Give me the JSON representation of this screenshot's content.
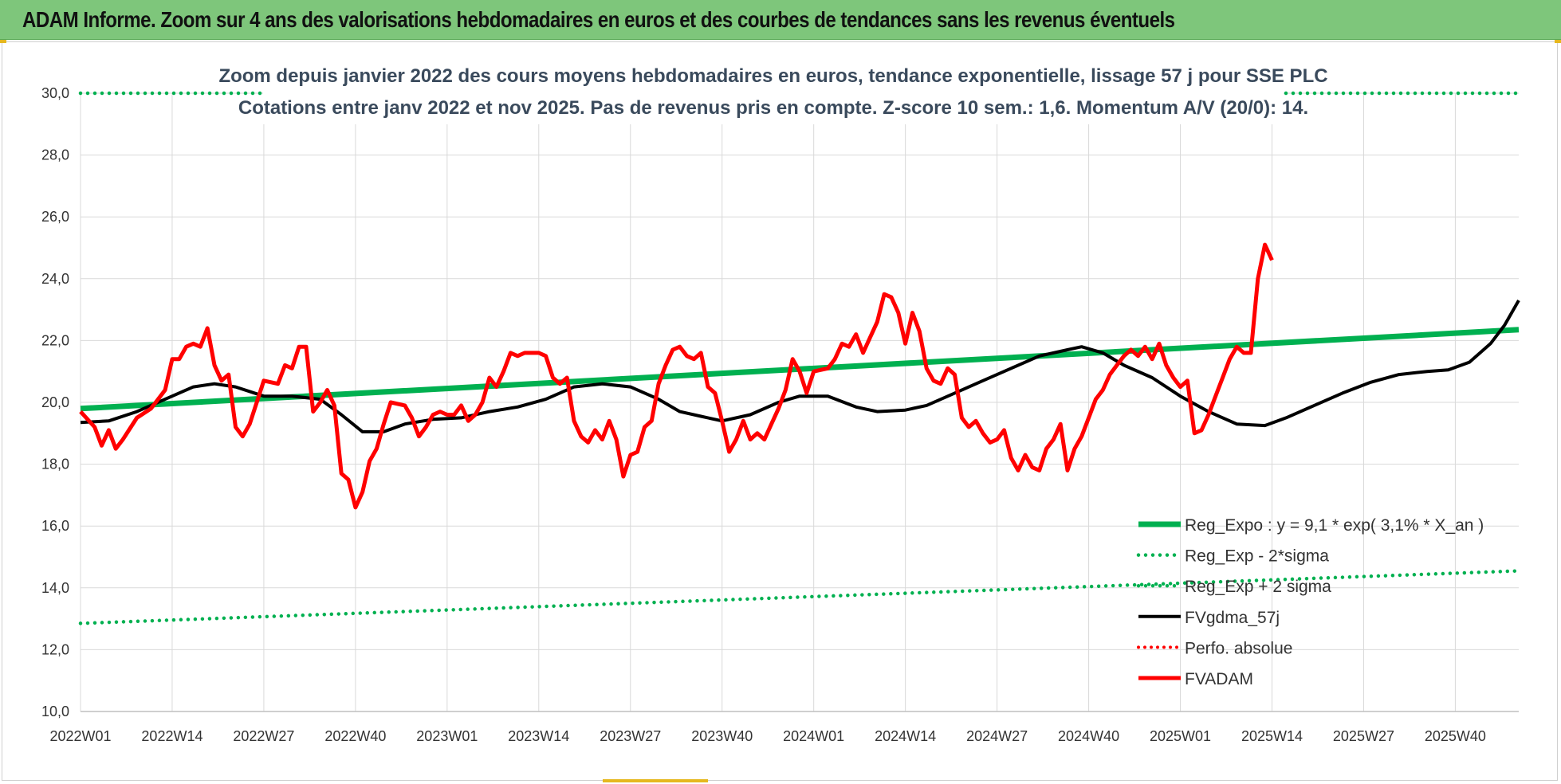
{
  "header": {
    "title": "ADAM Informe. Zoom sur 4 ans des valorisations hebdomadaires en euros et des courbes de tendances sans les revenus éventuels"
  },
  "colors": {
    "green": "#00b050",
    "black": "#000000",
    "red": "#ff0000",
    "grid": "#d9d9d9",
    "title_bg": "#7ec67b"
  },
  "chart_data": {
    "type": "line",
    "title": "Zoom depuis janvier 2022 des cours moyens hebdomadaires en euros, tendance exponentielle, lissage 57 j pour SSE PLC",
    "subtitle": "Cotations entre janv 2022 et nov 2025. Pas de revenus pris en compte. Z-score 10 sem.: 1,6. Momentum A/V (20/0): 14.",
    "xlabel": "",
    "ylabel": "",
    "ylim": [
      10,
      30
    ],
    "y_ticks": [
      "10,0",
      "12,0",
      "14,0",
      "16,0",
      "18,0",
      "20,0",
      "22,0",
      "24,0",
      "26,0",
      "28,0",
      "30,0"
    ],
    "x_tick_labels": [
      "2022W01",
      "2022W14",
      "2022W27",
      "2022W40",
      "2023W01",
      "2023W14",
      "2023W27",
      "2023W40",
      "2024W01",
      "2024W14",
      "2024W27",
      "2024W40",
      "2025W01",
      "2025W14",
      "2025W27",
      "2025W40"
    ],
    "x_tick_weeks": [
      0,
      13,
      26,
      39,
      52,
      65,
      78,
      91,
      104,
      117,
      130,
      143,
      156,
      169,
      182,
      195
    ],
    "n_weeks": 205,
    "legend": [
      "Reg_Expo : y = 9,1 * exp( 3,1% *  X_an )",
      "Reg_Exp - 2*sigma",
      "Reg_Exp + 2 sigma",
      "FVgdma_57j",
      "Perfo. absolue",
      "FVADAM"
    ],
    "series": [
      {
        "name": "Reg_Expo",
        "style": "solid-thick",
        "points": [
          [
            0,
            19.8
          ],
          [
            204,
            22.35
          ]
        ]
      },
      {
        "name": "Reg_Exp - 2*sigma",
        "style": "dotted",
        "points": [
          [
            0,
            12.85
          ],
          [
            204,
            14.55
          ]
        ]
      },
      {
        "name": "Reg_Exp + 2 sigma",
        "style": "dotted",
        "points": [
          [
            0,
            30.0
          ],
          [
            204,
            30.0
          ]
        ]
      },
      {
        "name": "FVgdma_57j",
        "style": "solid",
        "points": [
          [
            0,
            19.35
          ],
          [
            4,
            19.4
          ],
          [
            8,
            19.7
          ],
          [
            12,
            20.1
          ],
          [
            16,
            20.5
          ],
          [
            19,
            20.6
          ],
          [
            22,
            20.5
          ],
          [
            26,
            20.2
          ],
          [
            30,
            20.2
          ],
          [
            34,
            20.1
          ],
          [
            37,
            19.6
          ],
          [
            40,
            19.05
          ],
          [
            43,
            19.05
          ],
          [
            46,
            19.3
          ],
          [
            50,
            19.45
          ],
          [
            54,
            19.5
          ],
          [
            58,
            19.7
          ],
          [
            62,
            19.85
          ],
          [
            66,
            20.1
          ],
          [
            70,
            20.5
          ],
          [
            74,
            20.6
          ],
          [
            78,
            20.5
          ],
          [
            82,
            20.1
          ],
          [
            85,
            19.7
          ],
          [
            88,
            19.55
          ],
          [
            91,
            19.4
          ],
          [
            95,
            19.6
          ],
          [
            99,
            20.0
          ],
          [
            102,
            20.2
          ],
          [
            106,
            20.2
          ],
          [
            110,
            19.85
          ],
          [
            113,
            19.7
          ],
          [
            117,
            19.75
          ],
          [
            120,
            19.9
          ],
          [
            124,
            20.3
          ],
          [
            128,
            20.7
          ],
          [
            132,
            21.1
          ],
          [
            136,
            21.5
          ],
          [
            140,
            21.7
          ],
          [
            142,
            21.8
          ],
          [
            145,
            21.6
          ],
          [
            148,
            21.2
          ],
          [
            152,
            20.8
          ],
          [
            156,
            20.2
          ],
          [
            160,
            19.7
          ],
          [
            164,
            19.3
          ],
          [
            168,
            19.25
          ],
          [
            171,
            19.5
          ],
          [
            175,
            19.9
          ],
          [
            179,
            20.3
          ],
          [
            183,
            20.65
          ],
          [
            187,
            20.9
          ],
          [
            191,
            21.0
          ],
          [
            194,
            21.05
          ],
          [
            197,
            21.3
          ],
          [
            200,
            21.9
          ],
          [
            202,
            22.5
          ],
          [
            204,
            23.3
          ]
        ]
      },
      {
        "name": "FVADAM",
        "style": "solid-thick",
        "points": [
          [
            0,
            19.7
          ],
          [
            2,
            19.2
          ],
          [
            3,
            18.6
          ],
          [
            4,
            19.1
          ],
          [
            5,
            18.5
          ],
          [
            6,
            18.8
          ],
          [
            8,
            19.5
          ],
          [
            10,
            19.8
          ],
          [
            12,
            20.4
          ],
          [
            13,
            21.4
          ],
          [
            14,
            21.4
          ],
          [
            15,
            21.8
          ],
          [
            16,
            21.9
          ],
          [
            17,
            21.8
          ],
          [
            18,
            22.4
          ],
          [
            19,
            21.2
          ],
          [
            20,
            20.7
          ],
          [
            21,
            20.9
          ],
          [
            22,
            19.2
          ],
          [
            23,
            18.9
          ],
          [
            24,
            19.3
          ],
          [
            26,
            20.7
          ],
          [
            28,
            20.6
          ],
          [
            29,
            21.2
          ],
          [
            30,
            21.1
          ],
          [
            31,
            21.8
          ],
          [
            32,
            21.8
          ],
          [
            33,
            19.7
          ],
          [
            34,
            20.0
          ],
          [
            35,
            20.4
          ],
          [
            36,
            19.9
          ],
          [
            37,
            17.7
          ],
          [
            38,
            17.5
          ],
          [
            39,
            16.6
          ],
          [
            40,
            17.1
          ],
          [
            41,
            18.1
          ],
          [
            42,
            18.5
          ],
          [
            43,
            19.3
          ],
          [
            44,
            20.0
          ],
          [
            46,
            19.9
          ],
          [
            47,
            19.5
          ],
          [
            48,
            18.9
          ],
          [
            49,
            19.2
          ],
          [
            50,
            19.6
          ],
          [
            51,
            19.7
          ],
          [
            52,
            19.6
          ],
          [
            53,
            19.6
          ],
          [
            54,
            19.9
          ],
          [
            55,
            19.4
          ],
          [
            56,
            19.6
          ],
          [
            57,
            20.0
          ],
          [
            58,
            20.8
          ],
          [
            59,
            20.5
          ],
          [
            60,
            21.0
          ],
          [
            61,
            21.6
          ],
          [
            62,
            21.5
          ],
          [
            63,
            21.6
          ],
          [
            65,
            21.6
          ],
          [
            66,
            21.5
          ],
          [
            67,
            20.8
          ],
          [
            68,
            20.6
          ],
          [
            69,
            20.8
          ],
          [
            70,
            19.4
          ],
          [
            71,
            18.9
          ],
          [
            72,
            18.7
          ],
          [
            73,
            19.1
          ],
          [
            74,
            18.8
          ],
          [
            75,
            19.4
          ],
          [
            76,
            18.8
          ],
          [
            77,
            17.6
          ],
          [
            78,
            18.3
          ],
          [
            79,
            18.4
          ],
          [
            80,
            19.2
          ],
          [
            81,
            19.4
          ],
          [
            82,
            20.6
          ],
          [
            83,
            21.2
          ],
          [
            84,
            21.7
          ],
          [
            85,
            21.8
          ],
          [
            86,
            21.5
          ],
          [
            87,
            21.4
          ],
          [
            88,
            21.6
          ],
          [
            89,
            20.5
          ],
          [
            90,
            20.3
          ],
          [
            91,
            19.4
          ],
          [
            92,
            18.4
          ],
          [
            93,
            18.8
          ],
          [
            94,
            19.4
          ],
          [
            95,
            18.8
          ],
          [
            96,
            19.0
          ],
          [
            97,
            18.8
          ],
          [
            98,
            19.3
          ],
          [
            99,
            19.8
          ],
          [
            100,
            20.4
          ],
          [
            101,
            21.4
          ],
          [
            102,
            21.0
          ],
          [
            103,
            20.3
          ],
          [
            104,
            21.0
          ],
          [
            106,
            21.1
          ],
          [
            107,
            21.4
          ],
          [
            108,
            21.9
          ],
          [
            109,
            21.8
          ],
          [
            110,
            22.2
          ],
          [
            111,
            21.6
          ],
          [
            112,
            22.1
          ],
          [
            113,
            22.6
          ],
          [
            114,
            23.5
          ],
          [
            115,
            23.4
          ],
          [
            116,
            22.9
          ],
          [
            117,
            21.9
          ],
          [
            118,
            22.9
          ],
          [
            119,
            22.3
          ],
          [
            120,
            21.1
          ],
          [
            121,
            20.7
          ],
          [
            122,
            20.6
          ],
          [
            123,
            21.1
          ],
          [
            124,
            20.9
          ],
          [
            125,
            19.5
          ],
          [
            126,
            19.2
          ],
          [
            127,
            19.4
          ],
          [
            128,
            19.0
          ],
          [
            129,
            18.7
          ],
          [
            130,
            18.8
          ],
          [
            131,
            19.1
          ],
          [
            132,
            18.2
          ],
          [
            133,
            17.8
          ],
          [
            134,
            18.3
          ],
          [
            135,
            17.9
          ],
          [
            136,
            17.8
          ],
          [
            137,
            18.5
          ],
          [
            138,
            18.8
          ],
          [
            139,
            19.3
          ],
          [
            140,
            17.8
          ],
          [
            141,
            18.5
          ],
          [
            142,
            18.9
          ],
          [
            143,
            19.5
          ],
          [
            144,
            20.1
          ],
          [
            145,
            20.4
          ],
          [
            146,
            20.9
          ],
          [
            147,
            21.2
          ],
          [
            148,
            21.5
          ],
          [
            149,
            21.7
          ],
          [
            150,
            21.5
          ],
          [
            151,
            21.8
          ],
          [
            152,
            21.4
          ],
          [
            153,
            21.9
          ],
          [
            154,
            21.2
          ],
          [
            155,
            20.8
          ],
          [
            156,
            20.5
          ],
          [
            157,
            20.7
          ],
          [
            158,
            19.0
          ],
          [
            159,
            19.1
          ],
          [
            160,
            19.6
          ],
          [
            161,
            20.2
          ],
          [
            162,
            20.8
          ],
          [
            163,
            21.4
          ],
          [
            164,
            21.8
          ],
          [
            165,
            21.6
          ],
          [
            166,
            21.6
          ],
          [
            167,
            24.0
          ],
          [
            168,
            25.1
          ],
          [
            169,
            24.6
          ]
        ]
      },
      {
        "name": "Perfo. absolue",
        "style": "dotted-red",
        "points": []
      }
    ]
  }
}
